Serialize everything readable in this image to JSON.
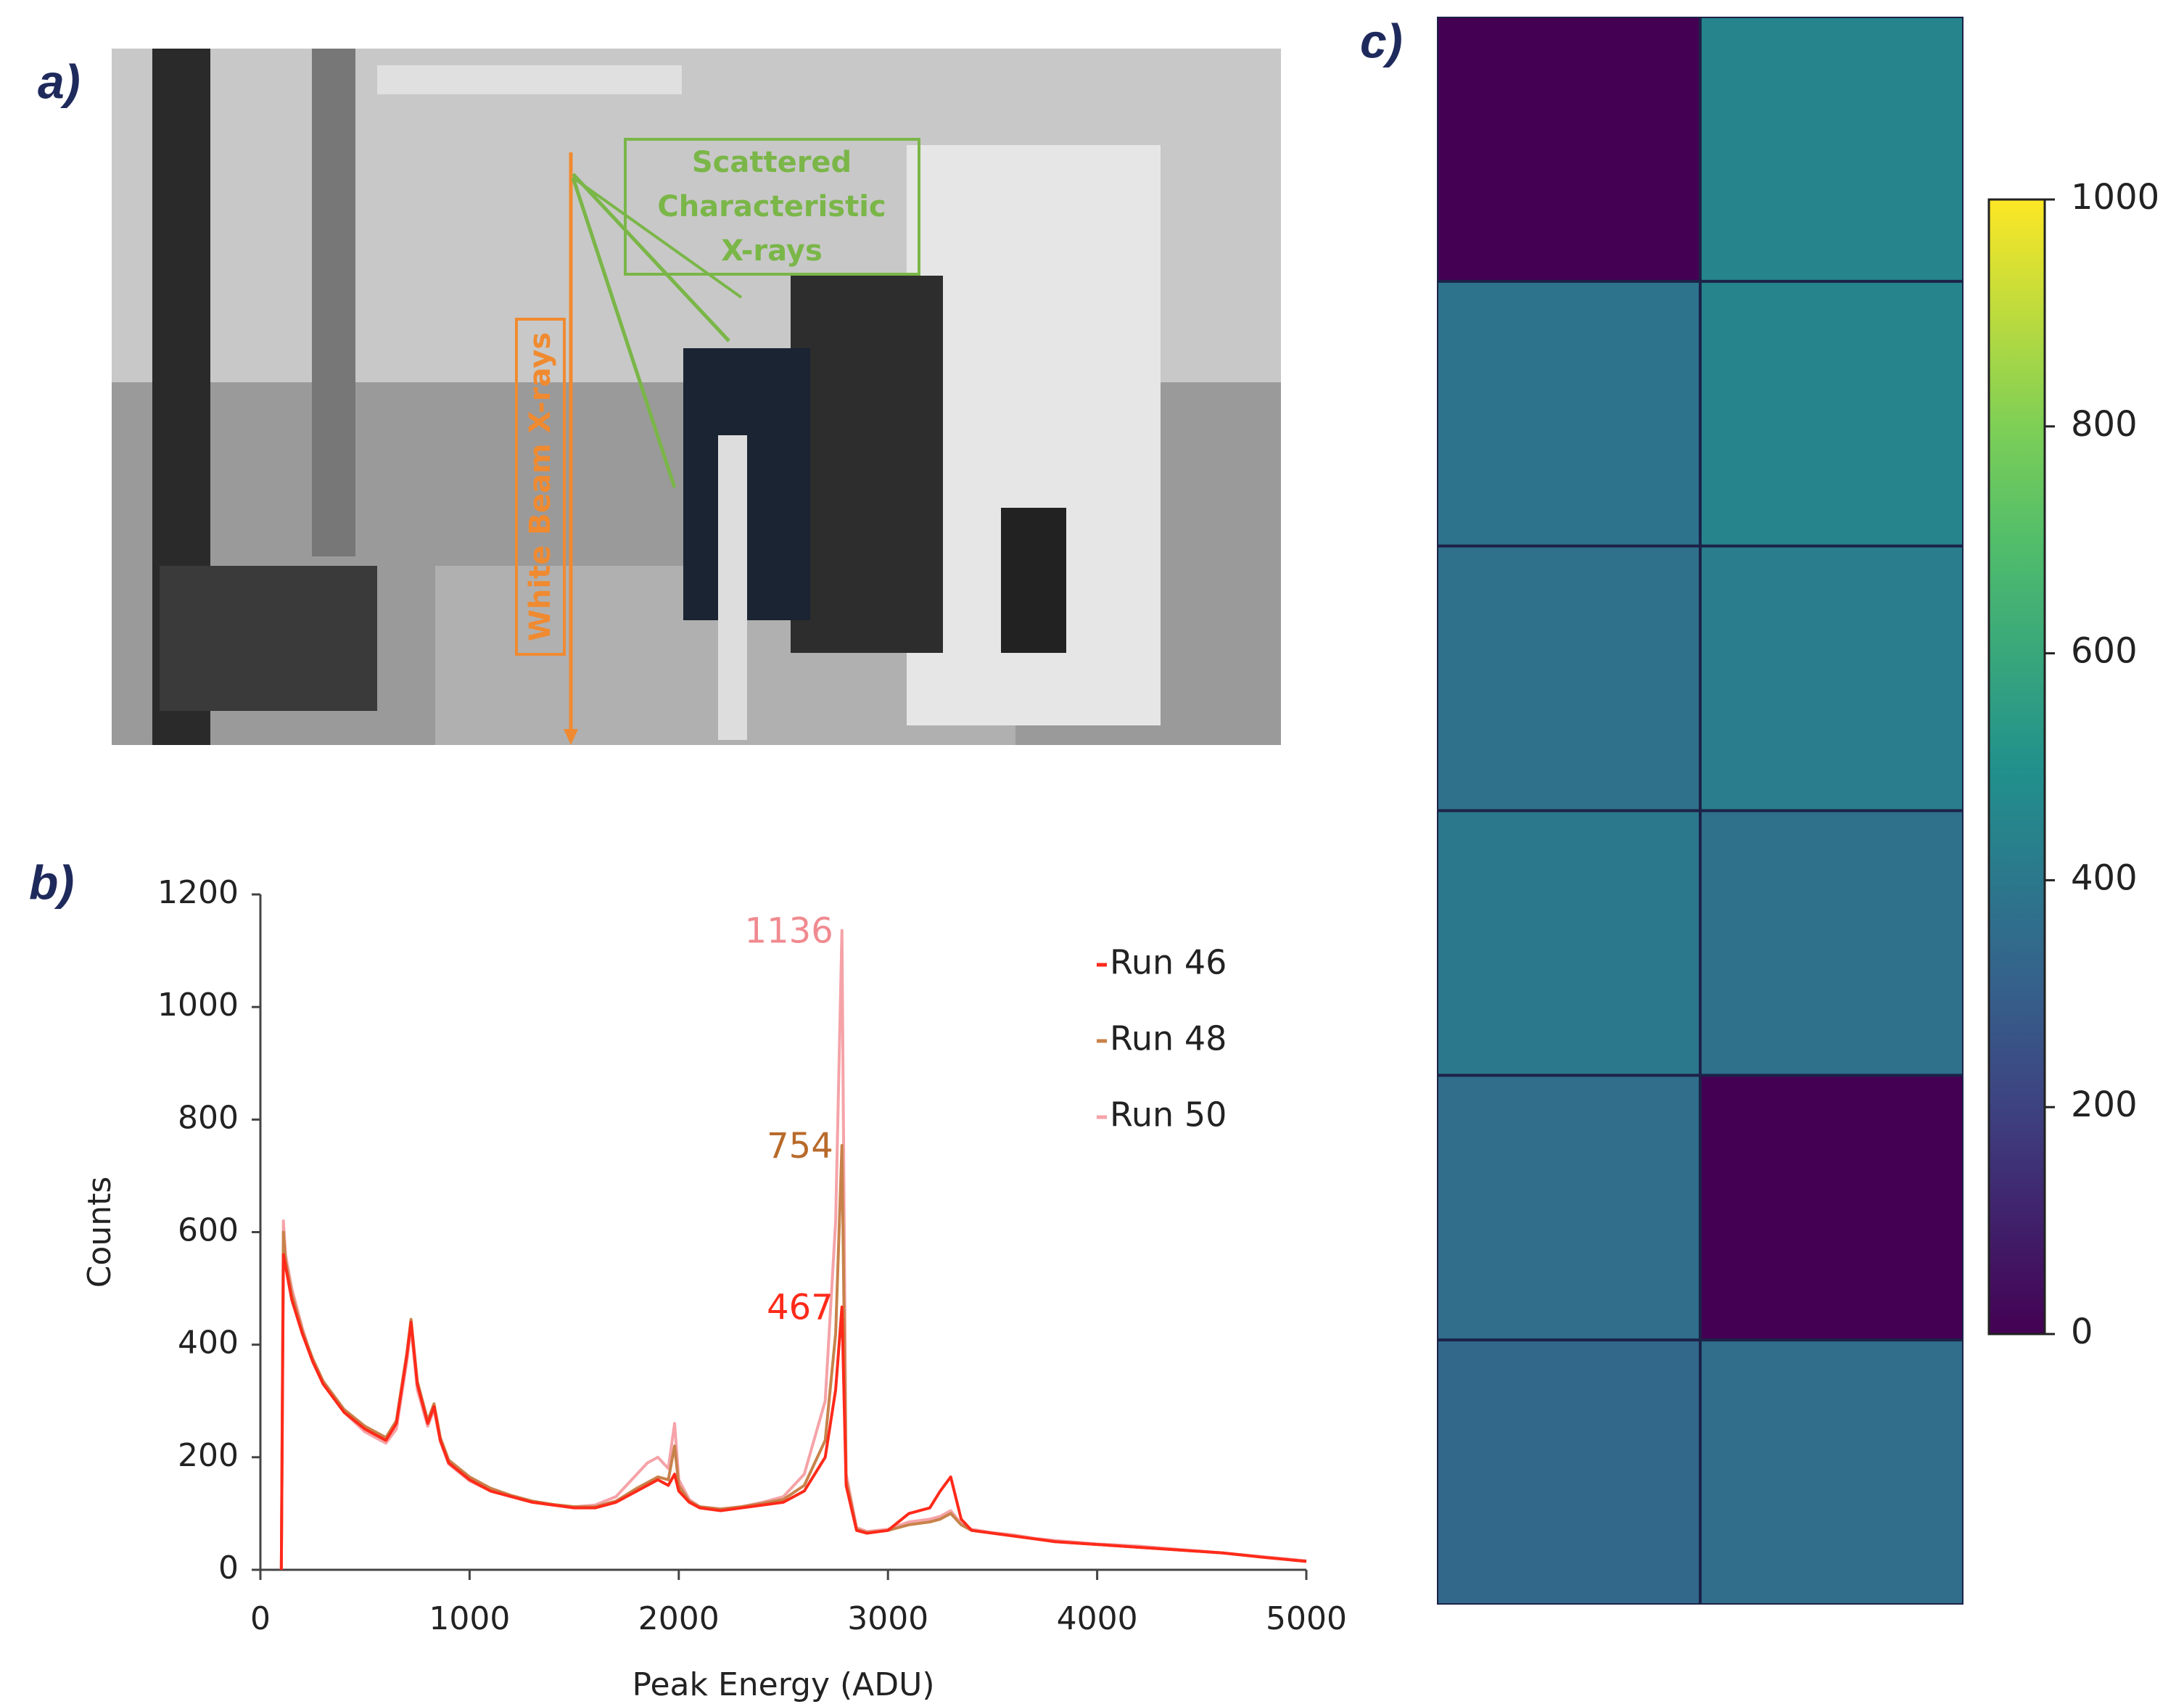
{
  "panels": {
    "a": "a)",
    "b": "b)",
    "c": "c)"
  },
  "photo": {
    "scattered": [
      "Scattered",
      "Characteristic",
      "X-rays"
    ],
    "white_beam": "White Beam X-rays"
  },
  "chart_data": [
    {
      "type": "line",
      "ylabel": "Counts",
      "xlabel": "Peak Energy (ADU)",
      "xlim": [
        0,
        5000
      ],
      "xticks": [
        0,
        1000,
        2000,
        3000,
        4000,
        5000
      ],
      "ylim": [
        0,
        1200
      ],
      "yticks": [
        0,
        200,
        400,
        600,
        800,
        1000,
        1200
      ],
      "x": [
        100,
        110,
        120,
        150,
        200,
        250,
        300,
        400,
        500,
        600,
        650,
        700,
        720,
        750,
        800,
        830,
        860,
        900,
        1000,
        1100,
        1200,
        1300,
        1400,
        1500,
        1600,
        1700,
        1800,
        1850,
        1900,
        1950,
        1980,
        2000,
        2050,
        2100,
        2200,
        2300,
        2400,
        2500,
        2600,
        2700,
        2750,
        2780,
        2800,
        2850,
        2900,
        3000,
        3100,
        3200,
        3250,
        3300,
        3350,
        3400,
        3500,
        3600,
        3700,
        3800,
        4000,
        4200,
        4400,
        4600,
        4800,
        5000
      ],
      "series": [
        {
          "name": "Run 46",
          "color": "#ff2a1a",
          "values": [
            0,
            560,
            540,
            480,
            420,
            370,
            330,
            280,
            250,
            230,
            260,
            380,
            440,
            330,
            260,
            290,
            230,
            190,
            160,
            140,
            130,
            120,
            115,
            110,
            110,
            120,
            140,
            150,
            160,
            150,
            170,
            140,
            120,
            110,
            105,
            110,
            115,
            120,
            140,
            200,
            320,
            467,
            150,
            70,
            65,
            70,
            100,
            110,
            140,
            165,
            90,
            70,
            65,
            60,
            55,
            50,
            45,
            40,
            35,
            30,
            22,
            15
          ]
        },
        {
          "name": "Run 48",
          "color": "#c8824a",
          "values": [
            0,
            600,
            550,
            490,
            425,
            375,
            335,
            285,
            255,
            235,
            265,
            385,
            445,
            335,
            265,
            295,
            235,
            195,
            165,
            145,
            132,
            122,
            116,
            112,
            112,
            122,
            145,
            155,
            165,
            160,
            220,
            150,
            122,
            112,
            108,
            112,
            118,
            125,
            150,
            230,
            420,
            754,
            160,
            72,
            66,
            70,
            80,
            85,
            90,
            100,
            80,
            70,
            65,
            60,
            55,
            50,
            45,
            40,
            35,
            30,
            22,
            15
          ]
        },
        {
          "name": "Run 50",
          "color": "#f5a3a8",
          "values": [
            0,
            620,
            560,
            500,
            430,
            370,
            330,
            280,
            245,
            225,
            250,
            370,
            430,
            320,
            255,
            285,
            228,
            188,
            158,
            140,
            130,
            120,
            115,
            112,
            115,
            130,
            170,
            190,
            200,
            180,
            260,
            160,
            125,
            112,
            108,
            112,
            120,
            130,
            170,
            300,
            620,
            1136,
            170,
            75,
            68,
            72,
            85,
            90,
            95,
            105,
            82,
            72,
            66,
            62,
            56,
            52,
            46,
            42,
            36,
            30,
            23,
            16
          ]
        }
      ],
      "annotations": [
        {
          "text": "1136",
          "x": 2780,
          "y": 1136,
          "color": "#f08a90"
        },
        {
          "text": "754",
          "x": 2780,
          "y": 754,
          "color": "#b86a2a"
        },
        {
          "text": "467",
          "x": 2780,
          "y": 467,
          "color": "#ff2a1a"
        }
      ]
    },
    {
      "type": "heatmap",
      "values": [
        [
          0,
          450
        ],
        [
          380,
          450
        ],
        [
          370,
          420
        ],
        [
          400,
          370
        ],
        [
          360,
          0
        ],
        [
          340,
          360
        ]
      ],
      "clim": [
        0,
        1000
      ],
      "cticks": [
        0,
        200,
        400,
        600,
        800,
        1000
      ]
    }
  ]
}
